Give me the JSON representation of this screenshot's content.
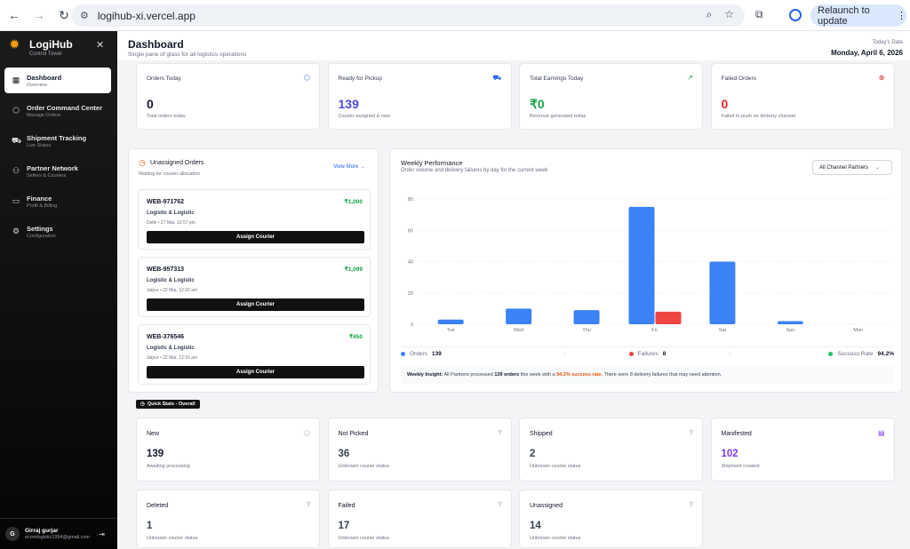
{
  "browser": {
    "url": "logihub-xi.vercel.app",
    "relaunch_label": "Relaunch to update"
  },
  "sidebar": {
    "brand_name": "LogiHub",
    "brand_sub": "Control Tower",
    "items": [
      {
        "label": "Dashboard",
        "sub": "Overview",
        "icon": "grid-icon",
        "active": true
      },
      {
        "label": "Order Command Center",
        "sub": "Manage Orders",
        "icon": "box-icon",
        "active": false
      },
      {
        "label": "Shipment Tracking",
        "sub": "Live Status",
        "icon": "truck-icon",
        "active": false
      },
      {
        "label": "Partner Network",
        "sub": "Sellers & Couriers",
        "icon": "handshake-icon",
        "active": false
      },
      {
        "label": "Finance",
        "sub": "Profit & Billing",
        "icon": "wallet-icon",
        "active": false
      },
      {
        "label": "Settings",
        "sub": "Configuration",
        "icon": "gear-icon",
        "active": false
      }
    ],
    "user": {
      "initial": "G",
      "name": "Girraj gurjar",
      "email": "ecomlogistic1994@gmail.com"
    }
  },
  "header": {
    "title": "Dashboard",
    "subtitle": "Single pane of glass for all logistics operations",
    "date_label": "Today's Date",
    "date_value": "Monday, April 6, 2026"
  },
  "stats": [
    {
      "title": "Orders Today",
      "value": "0",
      "desc": "Total orders today",
      "color": "#111827",
      "icon": "box-icon",
      "icon_color": "#2563eb"
    },
    {
      "title": "Ready for Pickup",
      "value": "139",
      "desc": "Courier assigned & new",
      "color": "#4f46e5",
      "icon": "truck-icon",
      "icon_color": "#2563eb"
    },
    {
      "title": "Total Earnings Today",
      "value": "₹0",
      "desc": "Revenue generated today",
      "color": "#16a34a",
      "icon": "trending-up-icon",
      "icon_color": "#16a34a"
    },
    {
      "title": "Failed Orders",
      "value": "0",
      "desc": "Failed to push on delivery channel",
      "color": "#dc2626",
      "icon": "x-circle-icon",
      "icon_color": "#dc2626"
    }
  ],
  "unassigned": {
    "title": "Unassigned Orders",
    "subtitle": "Waiting for courier allocation",
    "view_more": "View More",
    "orders": [
      {
        "id": "WEB-971762",
        "amount": "₹1,000",
        "partner": "Logistic & Logistic",
        "meta": "Delhi • 27 Mar, 12:57 pm",
        "button": "Assign Courier"
      },
      {
        "id": "WEB-957313",
        "amount": "₹1,099",
        "partner": "Logistic & Logistic",
        "meta": "Jaipur • 22 Mar, 12:32 am",
        "button": "Assign Courier"
      },
      {
        "id": "WEB-376546",
        "amount": "₹450",
        "partner": "Logistic & Logistic",
        "meta": "Jaipur • 22 Mar, 12:16 am",
        "button": "Assign Courier"
      }
    ]
  },
  "weekly": {
    "title": "Weekly Performance",
    "subtitle": "Order volume and delivery failures by day for the current week",
    "filter": "All Channel Partners",
    "legend": {
      "orders_label": "Orders",
      "orders_value": "139",
      "failures_label": "Failures",
      "failures_value": "8",
      "success_label": "Success Rate",
      "success_value": "94.2%"
    },
    "insight": {
      "prefix": "Weekly Insight:",
      "text1": " All Partners processed ",
      "orders": "139 orders",
      "text2": " this week with a ",
      "rate": "94.2% success rate.",
      "text3": " There were 8 delivery failures that may need attention."
    }
  },
  "chart_data": {
    "type": "bar",
    "categories": [
      "Tue",
      "Wed",
      "Thu",
      "Fri",
      "Sat",
      "Sun",
      "Mon"
    ],
    "series": [
      {
        "name": "Orders",
        "color": "#3b82f6",
        "values": [
          3,
          10,
          9,
          75,
          40,
          2,
          0
        ]
      },
      {
        "name": "Failures",
        "color": "#ef4444",
        "values": [
          0,
          0,
          0,
          8,
          0,
          0,
          0
        ]
      }
    ],
    "ylim": [
      0,
      80
    ],
    "yticks": [
      0,
      20,
      40,
      60,
      80
    ],
    "grid": true
  },
  "quick_stats": {
    "badge": "Quick Stats - Overall",
    "items": [
      {
        "title": "New",
        "value": "139",
        "desc": "Awaiting processing",
        "color": "#111827",
        "icon": "box-icon"
      },
      {
        "title": "Not Picked",
        "value": "36",
        "desc": "Unknown courier status",
        "color": "#374151",
        "icon": "help-circle-icon"
      },
      {
        "title": "Shipped",
        "value": "2",
        "desc": "Unknown courier status",
        "color": "#374151",
        "icon": "help-circle-icon"
      },
      {
        "title": "Manifested",
        "value": "102",
        "desc": "Shipment created",
        "color": "#7c3aed",
        "icon": "clipboard-icon"
      },
      {
        "title": "Deleted",
        "value": "1",
        "desc": "Unknown courier status",
        "color": "#374151",
        "icon": "help-circle-icon"
      },
      {
        "title": "Failed",
        "value": "17",
        "desc": "Unknown courier status",
        "color": "#374151",
        "icon": "help-circle-icon"
      },
      {
        "title": "Unassigned",
        "value": "14",
        "desc": "Unknown courier status",
        "color": "#374151",
        "icon": "help-circle-icon"
      }
    ]
  }
}
